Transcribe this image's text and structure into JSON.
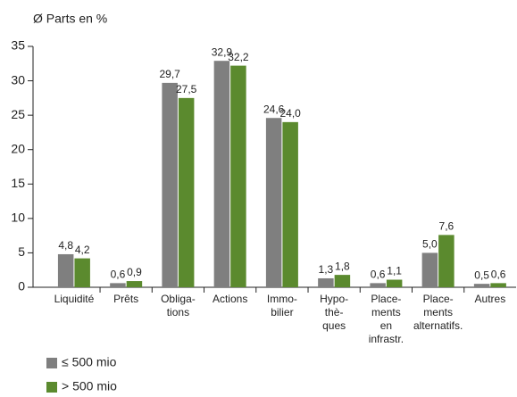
{
  "chart_data": {
    "type": "bar",
    "title": "Ø Parts en %",
    "categories": [
      [
        "Liquidité"
      ],
      [
        "Prêts"
      ],
      [
        "Obliga-",
        "tions"
      ],
      [
        "Actions"
      ],
      [
        "Immo-",
        "bilier"
      ],
      [
        "Hypo-",
        "thè-",
        "ques"
      ],
      [
        "Place-",
        "ments",
        "en",
        "infrastr."
      ],
      [
        "Place-",
        "ments",
        "alternatifs."
      ],
      [
        "Autres"
      ]
    ],
    "series": [
      {
        "name": "≤ 500 mio",
        "color": "#7f7f7f",
        "values": [
          4.8,
          0.6,
          29.7,
          32.9,
          24.6,
          1.3,
          0.6,
          5.0,
          0.5
        ],
        "value_labels": [
          "4,8",
          "0,6",
          "29,7",
          "32,9",
          "24,6",
          "1,3",
          "0,6",
          "5,0",
          "0,5"
        ]
      },
      {
        "name": "> 500 mio",
        "color": "#5b8a2e",
        "values": [
          4.2,
          0.9,
          27.5,
          32.2,
          24.0,
          1.8,
          1.1,
          7.6,
          0.6
        ],
        "value_labels": [
          "4,2",
          "0,9",
          "27,5",
          "32,2",
          "24,0",
          "1,8",
          "1,1",
          "7,6",
          "0,6"
        ]
      }
    ],
    "ylim": [
      0,
      35
    ],
    "yticks": [
      0,
      5,
      10,
      15,
      20,
      25,
      30,
      35
    ],
    "grid": false
  }
}
